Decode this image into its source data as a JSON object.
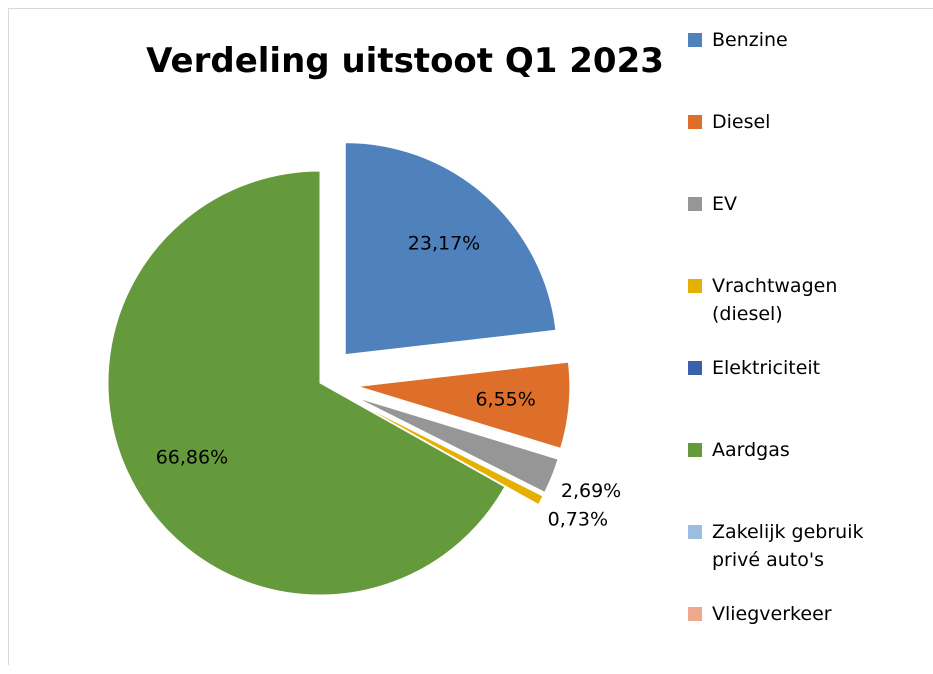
{
  "chart_data": {
    "type": "pie",
    "title": "Verdeling uitstoot Q1 2023",
    "categories": [
      "Benzine",
      "Diesel",
      "EV",
      "Vrachtwagen (diesel)",
      "Elektriciteit",
      "Aardgas",
      "Zakelijk gebruik privé auto's",
      "Vliegverkeer"
    ],
    "values": [
      23.17,
      6.55,
      2.69,
      0.73,
      0,
      66.86,
      0,
      0
    ],
    "value_labels": [
      "23,17%",
      "6,55%",
      "2,69%",
      "0,73%",
      null,
      "66,86%",
      null,
      null
    ],
    "colors": [
      "#4f81bd",
      "#dd6f2b",
      "#969696",
      "#e6b000",
      "#3a62ab",
      "#64993c",
      "#9dbde0",
      "#f0a88c"
    ],
    "legend": "right"
  }
}
